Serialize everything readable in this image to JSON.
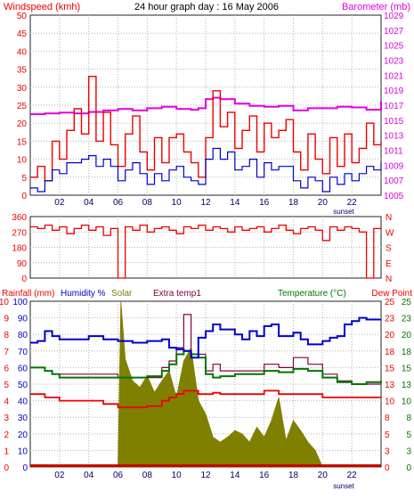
{
  "colors": {
    "background": "#ffffff",
    "plot_bg": "#ffffff",
    "grid": "#b4b4b4",
    "frame": "#222222",
    "wind_gust": "#ee0000",
    "wind_avg": "#0000cc",
    "barometer": "#e000e0",
    "direction": "#ee0000",
    "rain_axis": "#ee0000",
    "humidity": "#0000cc",
    "solar": "#7f7f00",
    "solar_fill": "#808000",
    "extra_temp": "#800040",
    "temperature": "#007700",
    "dew_point": "#ee0000",
    "temp_axis": "#007700",
    "dark_green": "#005500",
    "rain_bar": "#cc0000",
    "time_axis": "#000066"
  },
  "panels": {
    "top": {
      "title": "24 hour graph day : 16 May 2006",
      "left_label": "Windspeed (kmh)",
      "right_label": "Barometer (mb)"
    },
    "middle": {
      "right_ticks": [
        "N",
        "W",
        "S",
        "E",
        "N"
      ]
    },
    "bottom": {
      "labels": {
        "rainfall": "Rainfall (mm)",
        "humidity": "Humidity %",
        "solar": "Solar",
        "extra": "Extra temp1",
        "temperature": "Temperature (°C)",
        "dewpoint": "Dew Point"
      }
    }
  },
  "chart_data": [
    {
      "type": "line",
      "title": "24 hour graph day : 16 May 2006",
      "x_ticks": [
        "02",
        "04",
        "06",
        "08",
        "10",
        "12",
        "14",
        "16",
        "18",
        "20",
        "22"
      ],
      "x_range": [
        0,
        24
      ],
      "annotation": "sunset",
      "ylabel_left": "Windspeed (kmh)",
      "ylim_left": [
        0,
        50
      ],
      "yticks_left": [
        "0",
        "5",
        "10",
        "15",
        "20",
        "25",
        "30",
        "35",
        "40",
        "45",
        "50"
      ],
      "ylabel_right": "Barometer (mb)",
      "ylim_right": [
        1005,
        1029
      ],
      "yticks_right": [
        "1005",
        "1007",
        "1009",
        "1011",
        "1013",
        "1015",
        "1017",
        "1019",
        "1021",
        "1023",
        "1025",
        "1027",
        "1029"
      ],
      "grid": true,
      "series": [
        {
          "name": "Windspeed (kmh)",
          "role": "gust",
          "axis": "left",
          "x": [
            0,
            0.5,
            1,
            1.5,
            2,
            2.5,
            3,
            3.5,
            4,
            4.5,
            5,
            5.5,
            6,
            6.5,
            7,
            7.5,
            8,
            8.5,
            9,
            9.5,
            10,
            10.5,
            11,
            11.5,
            12,
            12.5,
            13,
            13.5,
            14,
            14.5,
            15,
            15.5,
            16,
            16.5,
            17,
            17.5,
            18,
            18.5,
            19,
            19.5,
            20,
            20.5,
            21,
            21.5,
            22,
            22.5,
            23,
            23.5,
            24
          ],
          "y": [
            5,
            8,
            4,
            15,
            10,
            18,
            24,
            17,
            33,
            15,
            23,
            14,
            8,
            17,
            22,
            12,
            7,
            16,
            9,
            16,
            17,
            12,
            9,
            5,
            16,
            29,
            19,
            23,
            13,
            18,
            22,
            12,
            20,
            16,
            18,
            21,
            12,
            7,
            17,
            10,
            6,
            16,
            8,
            17,
            9,
            13,
            20,
            14,
            15
          ]
        },
        {
          "name": "Windspeed average",
          "role": "average",
          "axis": "left",
          "x": [
            0,
            0.5,
            1,
            1.5,
            2,
            2.5,
            3,
            3.5,
            4,
            4.5,
            5,
            5.5,
            6,
            6.5,
            7,
            7.5,
            8,
            8.5,
            9,
            9.5,
            10,
            10.5,
            11,
            11.5,
            12,
            12.5,
            13,
            13.5,
            14,
            14.5,
            15,
            15.5,
            16,
            16.5,
            17,
            17.5,
            18,
            18.5,
            19,
            19.5,
            20,
            20.5,
            21,
            21.5,
            22,
            22.5,
            23,
            23.5,
            24
          ],
          "y": [
            2,
            1,
            4,
            7,
            6,
            9,
            9,
            10,
            11,
            8,
            10,
            8,
            4,
            7,
            9,
            6,
            3,
            6,
            4,
            7,
            8,
            5,
            4,
            3,
            10,
            13,
            10,
            12,
            7,
            8,
            10,
            5,
            9,
            7,
            8,
            8,
            4,
            2,
            5,
            4,
            1,
            5,
            3,
            6,
            4,
            6,
            8,
            7,
            9
          ]
        },
        {
          "name": "Barometer (mb)",
          "role": "pressure",
          "axis": "right",
          "x": [
            0,
            1,
            2,
            3,
            4,
            5,
            6,
            7,
            8,
            9,
            10,
            11,
            11.5,
            12,
            12.5,
            13,
            14,
            15,
            16,
            17,
            18,
            19,
            20,
            21,
            22,
            23,
            23.7,
            24
          ],
          "y": [
            1015.8,
            1015.9,
            1016.0,
            1015.9,
            1016.1,
            1016.3,
            1016.5,
            1016.3,
            1016.6,
            1016.8,
            1016.5,
            1016.4,
            1016.6,
            1017.8,
            1018.0,
            1017.8,
            1017.2,
            1016.9,
            1016.8,
            1016.9,
            1016.3,
            1016.6,
            1016.6,
            1016.8,
            1016.7,
            1016.4,
            1016.4,
            1017.5
          ]
        }
      ]
    },
    {
      "type": "line",
      "title": "",
      "x_ticks": [],
      "x_range": [
        0,
        24
      ],
      "ylim": [
        0,
        360
      ],
      "yticks_left": [
        "0",
        "90",
        "180",
        "270",
        "360"
      ],
      "yticks_right": [
        "N",
        "E",
        "S",
        "W",
        "N"
      ],
      "grid": true,
      "series": [
        {
          "name": "",
          "role": "wind direction",
          "x": [
            0,
            0.5,
            1,
            1.5,
            2,
            2.5,
            3,
            3.5,
            4,
            4.5,
            5,
            5.5,
            6,
            6.5,
            7,
            7.5,
            8,
            8.5,
            9,
            9.5,
            10,
            10.5,
            11,
            11.5,
            12,
            12.5,
            13,
            13.5,
            14,
            14.5,
            15,
            15.5,
            16,
            16.5,
            17,
            17.5,
            18,
            18.5,
            19,
            19.5,
            20,
            20.5,
            21,
            21.5,
            22,
            22.5,
            23,
            23.5,
            24
          ],
          "y": [
            300,
            290,
            310,
            280,
            300,
            260,
            290,
            310,
            280,
            300,
            250,
            290,
            0,
            300,
            280,
            310,
            270,
            290,
            300,
            280,
            260,
            300,
            290,
            310,
            280,
            300,
            290,
            270,
            300,
            280,
            290,
            300,
            270,
            290,
            310,
            280,
            260,
            290,
            300,
            280,
            220,
            300,
            280,
            300,
            290,
            270,
            0,
            290,
            300
          ]
        }
      ]
    },
    {
      "type": "line",
      "title": "",
      "x_ticks": [
        "02",
        "04",
        "06",
        "08",
        "10",
        "12",
        "14",
        "16",
        "18",
        "20",
        "22"
      ],
      "x_range": [
        0,
        24
      ],
      "annotation": "sunset",
      "ylabel_left": "Rainfall (mm)",
      "ylim_left": [
        0,
        100
      ],
      "yticks_rain": [
        "0",
        "1",
        "2",
        "3",
        "4",
        "5",
        "6",
        "7",
        "8",
        "9",
        "10"
      ],
      "yticks_humidity": [
        "0",
        "10",
        "20",
        "30",
        "40",
        "50",
        "60",
        "70",
        "80",
        "90",
        "100"
      ],
      "ylabel_right": "Temperature (°C)",
      "ylim_right": [
        0,
        25
      ],
      "yticks_temp_inner": [
        "0",
        "3",
        "5",
        "8",
        "10",
        "13",
        "15",
        "18",
        "20",
        "23",
        "25"
      ],
      "yticks_temp_outer": [
        "0",
        "3",
        "5",
        "8",
        "10",
        "13",
        "15",
        "18",
        "20",
        "23",
        "25"
      ],
      "grid": true,
      "series": [
        {
          "name": "Humidity %",
          "role": "humidity",
          "axis": "humidity",
          "x": [
            0,
            0.5,
            1,
            1.5,
            2,
            3,
            4,
            5,
            6,
            7,
            8,
            9,
            9.5,
            10,
            10.5,
            11,
            11.5,
            12,
            12.5,
            13,
            14,
            14.5,
            15,
            15.5,
            16,
            16.5,
            17,
            18,
            18.5,
            19,
            20,
            20.5,
            21,
            21.5,
            22,
            22.5,
            23,
            24
          ],
          "y": [
            75,
            76,
            82,
            79,
            77,
            77,
            79,
            77,
            76,
            75,
            76,
            77,
            72,
            71,
            70,
            66,
            78,
            82,
            86,
            83,
            80,
            77,
            82,
            79,
            85,
            86,
            79,
            81,
            77,
            74,
            76,
            78,
            79,
            86,
            88,
            90,
            89,
            89
          ]
        },
        {
          "name": "Solar",
          "role": "solar radiation",
          "axis": "humidity",
          "x": [
            0,
            6.0,
            6.2,
            6.5,
            7,
            7.5,
            8,
            8.5,
            9,
            9.5,
            10,
            10.5,
            11,
            11.5,
            12,
            12.5,
            13,
            13.5,
            14,
            14.5,
            15,
            15.5,
            16,
            16.5,
            17,
            17.5,
            18,
            18.5,
            19,
            19.5,
            20,
            24
          ],
          "y": [
            0,
            0,
            100,
            65,
            52,
            48,
            55,
            45,
            52,
            58,
            42,
            64,
            72,
            40,
            32,
            18,
            15,
            18,
            22,
            20,
            15,
            24,
            18,
            28,
            42,
            16,
            28,
            22,
            15,
            10,
            0,
            0
          ]
        },
        {
          "name": "Extra temp1",
          "role": "extra temperature",
          "axis": "temp",
          "x": [
            0,
            0.5,
            1,
            1.5,
            2,
            3,
            4,
            5,
            6,
            7,
            8,
            9,
            9.5,
            10,
            10.5,
            11,
            11.5,
            12,
            12.5,
            13,
            14,
            15,
            16,
            17,
            18,
            19,
            20,
            21,
            22,
            23,
            24
          ],
          "y": [
            15.0,
            15.0,
            14.5,
            14.0,
            14.0,
            14.0,
            14.0,
            14.0,
            13.5,
            13.5,
            13.5,
            15.0,
            16.0,
            18.0,
            23.0,
            17.0,
            17.0,
            14.5,
            15.5,
            14.5,
            14.5,
            14.5,
            15.5,
            15.0,
            16.5,
            15.5,
            14.0,
            13.0,
            12.5,
            12.5,
            12.5
          ]
        },
        {
          "name": "Temperature (°C)",
          "role": "temperature",
          "axis": "temp",
          "x": [
            0,
            0.5,
            1,
            1.5,
            2,
            3,
            4,
            5,
            6,
            7,
            8,
            9,
            9.5,
            10,
            10.5,
            11,
            11.5,
            12,
            12.5,
            13,
            14,
            15,
            16,
            17,
            18,
            19,
            20,
            21,
            22,
            23,
            24
          ],
          "y": [
            15.0,
            15.0,
            14.5,
            14.0,
            13.5,
            13.5,
            13.5,
            13.5,
            13.5,
            13.5,
            13.7,
            14.5,
            15.5,
            17.0,
            17.5,
            17.0,
            16.5,
            14.0,
            13.5,
            13.7,
            14.0,
            14.0,
            14.5,
            14.3,
            14.8,
            14.5,
            13.5,
            12.8,
            12.5,
            12.8,
            13.0
          ]
        },
        {
          "name": "Dew Point",
          "role": "dew point",
          "axis": "temp",
          "x": [
            0,
            1,
            2,
            3,
            4,
            5,
            6,
            7,
            8,
            9,
            9.5,
            10,
            10.5,
            11,
            11.5,
            12,
            12.5,
            13,
            14,
            15,
            16,
            17,
            18,
            19,
            20,
            21,
            22,
            23,
            24
          ],
          "y": [
            11.0,
            10.5,
            10.0,
            10.0,
            10.0,
            9.5,
            9.0,
            9.0,
            9.2,
            10.0,
            10.5,
            11.0,
            11.5,
            11.5,
            11.0,
            11.0,
            11.2,
            11.0,
            11.0,
            11.0,
            11.5,
            11.0,
            11.0,
            11.0,
            10.5,
            10.5,
            10.5,
            10.5,
            10.5
          ]
        },
        {
          "name": "Rainfall (mm)",
          "role": "rainfall",
          "axis": "rain",
          "x": [
            0,
            24
          ],
          "y": [
            0,
            0
          ]
        }
      ]
    }
  ]
}
